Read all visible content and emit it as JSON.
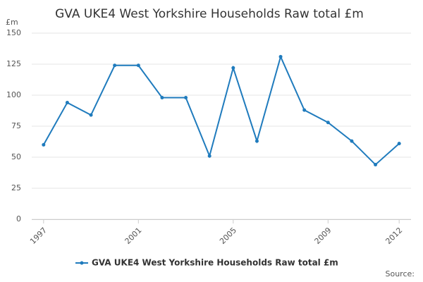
{
  "chart_data": {
    "type": "line",
    "title": "GVA UKE4 West Yorkshire Households Raw total £m",
    "y_label": "£m",
    "source": "Source:",
    "x": [
      1997,
      1998,
      1999,
      2000,
      2001,
      2002,
      2003,
      2004,
      2005,
      2006,
      2007,
      2008,
      2009,
      2010,
      2011,
      2012
    ],
    "series": [
      {
        "name": "GVA UKE4 West Yorkshire Households Raw total £m",
        "color": "#1f7bbd",
        "values": [
          60,
          94,
          84,
          124,
          124,
          98,
          98,
          51,
          122,
          63,
          131,
          88,
          78,
          63,
          44,
          61
        ]
      }
    ],
    "xlim": [
      1996.5,
      2012.5
    ],
    "xticks": [
      1997,
      2001,
      2005,
      2009,
      2012
    ],
    "ylim": [
      0,
      150
    ],
    "yticks": [
      0,
      25,
      50,
      75,
      100,
      125,
      150
    ],
    "grid": true
  }
}
